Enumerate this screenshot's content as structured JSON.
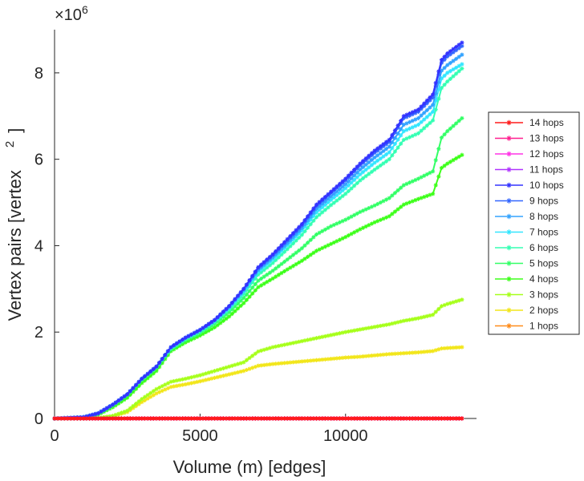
{
  "chart_data": {
    "type": "line",
    "xlabel": "Volume (m) [edges]",
    "ylabel": "Vertex pairs [vertex",
    "ylabel_superscript": "2",
    "ylabel_close": "]",
    "y_multiplier": "×10",
    "y_multiplier_exp": "6",
    "xlim": [
      0,
      14500
    ],
    "ylim": [
      0,
      9000000
    ],
    "x_ticks": [
      0,
      5000,
      10000
    ],
    "x_tick_labels": [
      "0",
      "5000",
      "10000"
    ],
    "y_ticks": [
      0,
      2000000,
      4000000,
      6000000,
      8000000
    ],
    "y_tick_labels": [
      "0",
      "2",
      "4",
      "6",
      "8"
    ],
    "grid": false,
    "legend_position": "right",
    "marker": "*",
    "x": [
      0,
      1000,
      1500,
      2000,
      2500,
      3000,
      3500,
      4000,
      4500,
      5000,
      5500,
      6000,
      6500,
      7000,
      7500,
      8000,
      8500,
      9000,
      9500,
      10000,
      10500,
      11000,
      11500,
      12000,
      12500,
      13000,
      13300,
      13500,
      14000
    ],
    "series": [
      {
        "name": "14 hops",
        "color": "#ff1a1a",
        "values": [
          0,
          0,
          0,
          0,
          0,
          0,
          0,
          0,
          0,
          0,
          0,
          0,
          0,
          0,
          0,
          0,
          0,
          0,
          0,
          0,
          0,
          0,
          0,
          0,
          0,
          0,
          0,
          0,
          0
        ]
      },
      {
        "name": "13 hops",
        "color": "#ff1f8f",
        "values": [
          0,
          0,
          0,
          0,
          0,
          0,
          0,
          0,
          0,
          0,
          0,
          0,
          0,
          0,
          0,
          0,
          0,
          0,
          0,
          0,
          0,
          0,
          0,
          0,
          0,
          0,
          0,
          0,
          0
        ]
      },
      {
        "name": "12 hops",
        "color": "#ff33e6",
        "values": [
          0,
          0,
          0,
          0,
          0,
          0,
          0,
          0,
          0,
          0,
          0,
          0,
          0,
          0,
          0,
          0,
          0,
          0,
          0,
          0,
          0,
          0,
          0,
          0,
          0,
          0,
          0,
          0,
          0
        ]
      },
      {
        "name": "11 hops",
        "color": "#b033ff",
        "values": [
          0,
          0,
          0,
          0,
          0,
          0,
          0,
          0,
          0,
          0,
          0,
          0,
          0,
          0,
          0,
          0,
          0,
          0,
          0,
          0,
          0,
          0,
          0,
          0,
          0,
          0,
          0,
          0,
          0
        ]
      },
      {
        "name": "10 hops",
        "color": "#3333ff",
        "values": [
          0,
          30000,
          120000,
          320000,
          560000,
          920000,
          1200000,
          1650000,
          1870000,
          2050000,
          2280000,
          2600000,
          3000000,
          3500000,
          3800000,
          4150000,
          4500000,
          4950000,
          5250000,
          5550000,
          5900000,
          6200000,
          6450000,
          7000000,
          7150000,
          7500000,
          8300000,
          8450000,
          8700000
        ]
      },
      {
        "name": "9 hops",
        "color": "#3366ff",
        "values": [
          0,
          30000,
          120000,
          320000,
          560000,
          920000,
          1200000,
          1650000,
          1870000,
          2050000,
          2280000,
          2600000,
          3000000,
          3480000,
          3780000,
          4120000,
          4470000,
          4920000,
          5220000,
          5510000,
          5860000,
          6150000,
          6400000,
          6950000,
          7100000,
          7430000,
          8230000,
          8380000,
          8620000
        ]
      },
      {
        "name": "8 hops",
        "color": "#33a3ff",
        "values": [
          0,
          30000,
          120000,
          320000,
          560000,
          920000,
          1200000,
          1650000,
          1870000,
          2050000,
          2270000,
          2580000,
          2970000,
          3440000,
          3730000,
          4060000,
          4410000,
          4850000,
          5140000,
          5420000,
          5760000,
          6040000,
          6290000,
          6800000,
          6950000,
          7260000,
          8050000,
          8180000,
          8420000
        ]
      },
      {
        "name": "7 hops",
        "color": "#33e6ff",
        "values": [
          0,
          30000,
          120000,
          320000,
          560000,
          920000,
          1200000,
          1640000,
          1860000,
          2040000,
          2260000,
          2560000,
          2940000,
          3400000,
          3680000,
          4010000,
          4350000,
          4770000,
          5060000,
          5330000,
          5650000,
          5920000,
          6160000,
          6650000,
          6800000,
          7100000,
          7870000,
          8000000,
          8200000
        ]
      },
      {
        "name": "6 hops",
        "color": "#33ffb3",
        "values": [
          0,
          30000,
          120000,
          320000,
          560000,
          910000,
          1190000,
          1620000,
          1840000,
          2010000,
          2230000,
          2520000,
          2880000,
          3330000,
          3600000,
          3920000,
          4250000,
          4660000,
          4940000,
          5200000,
          5510000,
          5760000,
          6000000,
          6450000,
          6600000,
          6900000,
          7650000,
          7800000,
          8100000
        ]
      },
      {
        "name": "5 hops",
        "color": "#33ff66",
        "values": [
          0,
          30000,
          110000,
          300000,
          540000,
          890000,
          1170000,
          1600000,
          1810000,
          1980000,
          2190000,
          2460000,
          2790000,
          3190000,
          3420000,
          3680000,
          3940000,
          4260000,
          4450000,
          4600000,
          4780000,
          4930000,
          5100000,
          5400000,
          5550000,
          5720000,
          6500000,
          6650000,
          6950000
        ]
      },
      {
        "name": "4 hops",
        "color": "#3dff1a",
        "values": [
          0,
          20000,
          90000,
          260000,
          480000,
          820000,
          1100000,
          1560000,
          1760000,
          1920000,
          2110000,
          2360000,
          2670000,
          3040000,
          3240000,
          3450000,
          3650000,
          3880000,
          4040000,
          4200000,
          4380000,
          4540000,
          4680000,
          4950000,
          5080000,
          5200000,
          5800000,
          5900000,
          6100000
        ]
      },
      {
        "name": "3 hops",
        "color": "#a6ff1a",
        "values": [
          0,
          0,
          10000,
          60000,
          180000,
          450000,
          680000,
          850000,
          920000,
          1000000,
          1100000,
          1200000,
          1300000,
          1550000,
          1650000,
          1720000,
          1790000,
          1860000,
          1930000,
          2000000,
          2060000,
          2120000,
          2180000,
          2260000,
          2320000,
          2400000,
          2600000,
          2650000,
          2750000
        ]
      },
      {
        "name": "2 hops",
        "color": "#f2e61a",
        "values": [
          0,
          0,
          10000,
          50000,
          150000,
          380000,
          580000,
          730000,
          790000,
          860000,
          940000,
          1020000,
          1100000,
          1220000,
          1260000,
          1290000,
          1320000,
          1350000,
          1380000,
          1410000,
          1430000,
          1460000,
          1490000,
          1510000,
          1530000,
          1560000,
          1620000,
          1630000,
          1650000
        ]
      },
      {
        "name": "1 hops",
        "color": "#ff8c1a",
        "values": [
          0,
          0,
          0,
          0,
          0,
          0,
          0,
          0,
          0,
          0,
          0,
          0,
          0,
          0,
          0,
          0,
          0,
          0,
          0,
          0,
          0,
          0,
          0,
          0,
          0,
          0,
          0,
          0,
          0
        ]
      }
    ]
  }
}
